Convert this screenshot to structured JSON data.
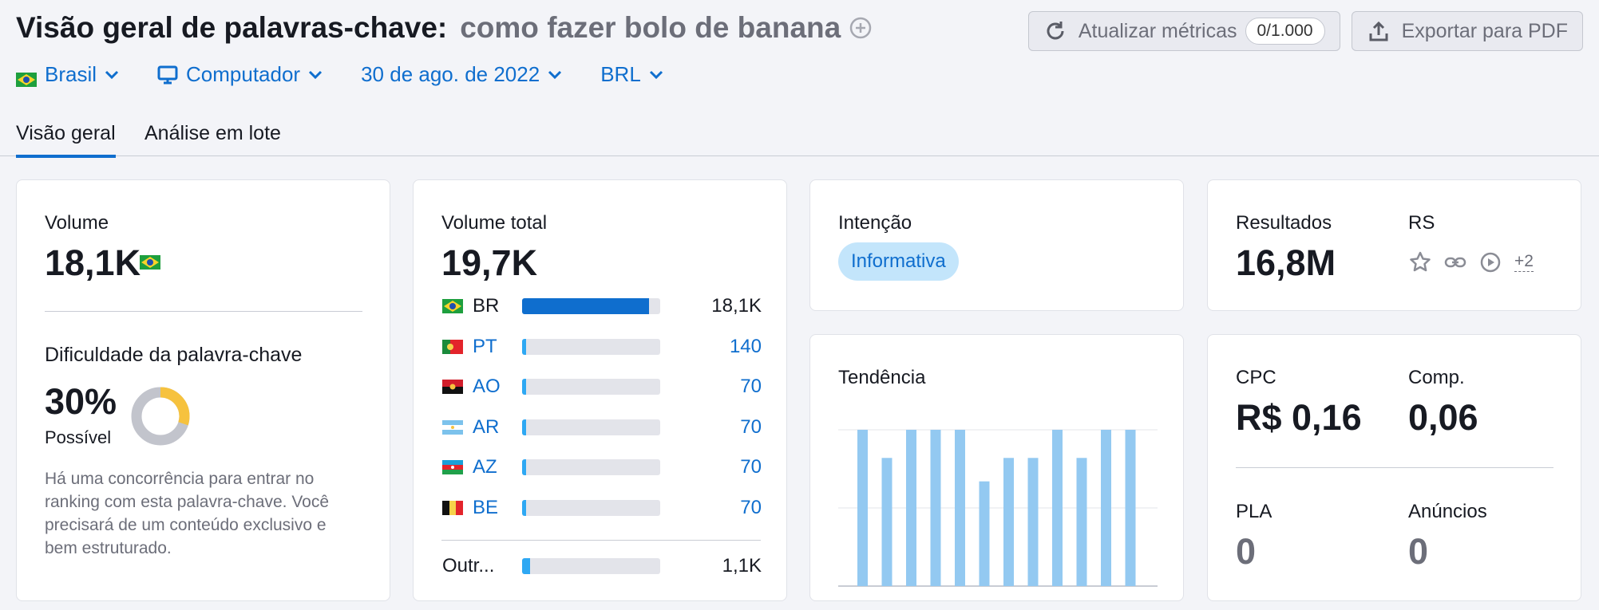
{
  "header": {
    "title": "Visão geral de palavras-chave:",
    "keyword": "como fazer bolo de banana",
    "update_label": "Atualizar métricas",
    "update_counter": "0/1.000",
    "export_label": "Exportar para PDF"
  },
  "filters": {
    "country": "Brasil",
    "device": "Computador",
    "date": "30 de ago. de 2022",
    "currency": "BRL"
  },
  "tabs": [
    "Visão geral",
    "Análise em lote"
  ],
  "volume": {
    "label": "Volume",
    "value": "18,1K"
  },
  "difficulty": {
    "label": "Dificuldade da palavra-chave",
    "percent": "30%",
    "percent_value": 30,
    "status": "Possível",
    "description_lines": [
      "Há uma concorrência para entrar no",
      "ranking com esta palavra-chave. Você",
      "precisará de um conteúdo exclusivo e",
      "bem estruturado."
    ]
  },
  "total_volume": {
    "label": "Volume total",
    "value": "19,7K",
    "countries": [
      {
        "code": "BR",
        "value": "18,1K",
        "share": 0.92
      },
      {
        "code": "PT",
        "value": "140",
        "share": 0.03
      },
      {
        "code": "AO",
        "value": "70",
        "share": 0.03
      },
      {
        "code": "AR",
        "value": "70",
        "share": 0.03
      },
      {
        "code": "AZ",
        "value": "70",
        "share": 0.03
      },
      {
        "code": "BE",
        "value": "70",
        "share": 0.03
      }
    ],
    "other": {
      "code": "Outr...",
      "value": "1,1K",
      "share": 0.06
    }
  },
  "intent": {
    "label": "Intenção",
    "value": "Informativa"
  },
  "trend": {
    "label": "Tendência",
    "values": [
      1.0,
      0.82,
      1.0,
      1.0,
      1.0,
      0.67,
      0.82,
      0.82,
      1.0,
      0.82,
      1.0,
      1.0
    ]
  },
  "results": {
    "label": "Resultados",
    "value": "16,8M",
    "rs_label": "RS",
    "rs_more": "+2"
  },
  "cpc": {
    "cpc_label": "CPC",
    "cpc_value": "R$ 0,16",
    "comp_label": "Comp.",
    "comp_value": "0,06",
    "pla_label": "PLA",
    "pla_value": "0",
    "ads_label": "Anúncios",
    "ads_value": "0"
  },
  "colors": {
    "accent": "#0f6ece",
    "trend_bar": "#93c9f1",
    "kd_fill": "#f6c23e",
    "kd_track": "#c2c4cc"
  }
}
